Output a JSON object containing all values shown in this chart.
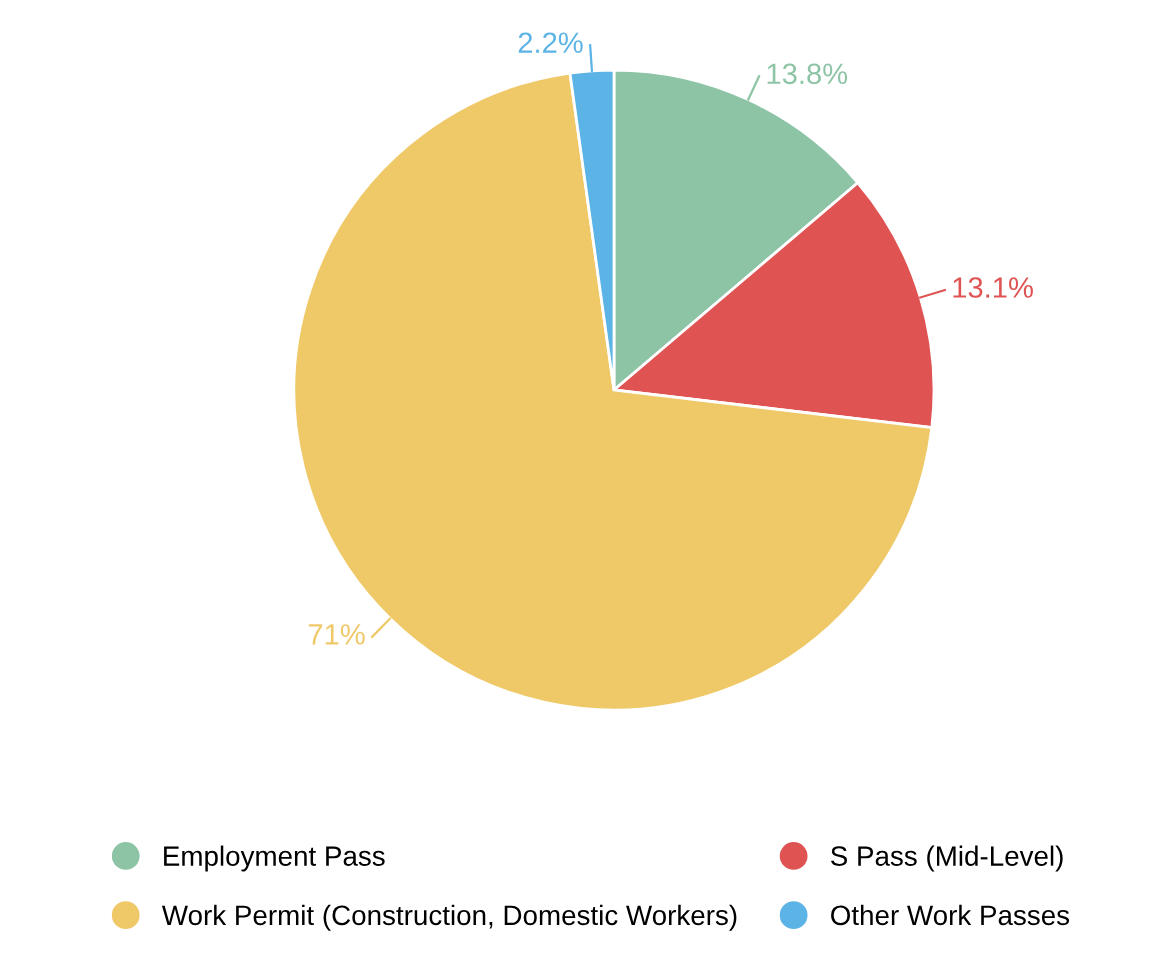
{
  "chart_data": {
    "type": "pie",
    "categories": [
      "Employment Pass",
      "S Pass (Mid-Level)",
      "Work Permit (Construction, Domestic Workers)",
      "Other Work Passes"
    ],
    "values": [
      13.8,
      13.1,
      71,
      2.2
    ],
    "colors": [
      "#8dc4a6",
      "#df5353",
      "#efc868",
      "#5bb3e6"
    ],
    "value_labels": [
      "13.8%",
      "13.1%",
      "71%",
      "2.2%"
    ],
    "legend": "bottom"
  }
}
